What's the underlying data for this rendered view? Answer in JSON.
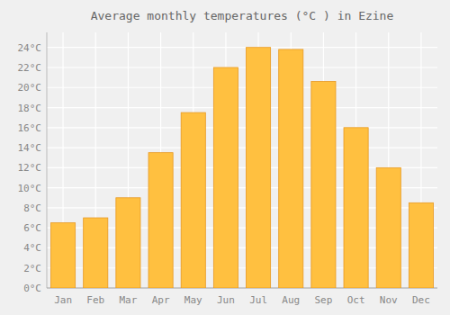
{
  "chart_data": {
    "type": "bar",
    "title": "Average monthly temperatures (°C ) in Ezine",
    "categories": [
      "Jan",
      "Feb",
      "Mar",
      "Apr",
      "May",
      "Jun",
      "Jul",
      "Aug",
      "Sep",
      "Oct",
      "Nov",
      "Dec"
    ],
    "values": [
      6.5,
      7.0,
      9.0,
      13.5,
      17.5,
      22.0,
      24.0,
      23.8,
      20.6,
      16.0,
      12.0,
      8.5
    ],
    "color": "#FFC040",
    "ylim": [
      0,
      25.5
    ],
    "yticks": [
      {
        "value": 0,
        "label": "0°C"
      },
      {
        "value": 2,
        "label": "2°C"
      },
      {
        "value": 4,
        "label": "4°C"
      },
      {
        "value": 6,
        "label": "6°C"
      },
      {
        "value": 8,
        "label": "8°C"
      },
      {
        "value": 10,
        "label": "10°C"
      },
      {
        "value": 12,
        "label": "12°C"
      },
      {
        "value": 14,
        "label": "14°C"
      },
      {
        "value": 16,
        "label": "16°C"
      },
      {
        "value": 18,
        "label": "18°C"
      },
      {
        "value": 20,
        "label": "20°C"
      },
      {
        "value": 22,
        "label": "22°C"
      },
      {
        "value": 24,
        "label": "24°C"
      }
    ],
    "grid": true
  }
}
